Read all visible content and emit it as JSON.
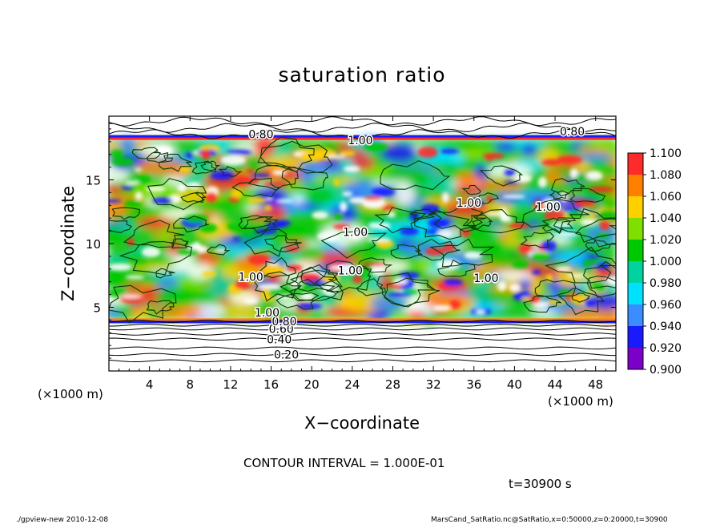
{
  "chart_data": {
    "type": "heatmap",
    "title": "saturation ratio",
    "xlabel": "X−coordinate",
    "ylabel": "Z−coordinate",
    "x_unit_left": "(×1000 m)",
    "x_unit_right": "(×1000 m)",
    "xlim": [
      0,
      50
    ],
    "ylim": [
      0,
      20
    ],
    "x_ticks": [
      4,
      8,
      12,
      16,
      20,
      24,
      28,
      32,
      36,
      40,
      44,
      48
    ],
    "y_ticks": [
      5,
      10,
      15
    ],
    "colorbar": {
      "levels": [
        "0.900",
        "0.920",
        "0.940",
        "0.960",
        "0.980",
        "1.000",
        "1.020",
        "1.040",
        "1.060",
        "1.080",
        "1.100"
      ],
      "colors": [
        "#7b00c8",
        "#1a1aff",
        "#3a8cff",
        "#00e0ff",
        "#00d2a0",
        "#00c800",
        "#7fe000",
        "#ffe000",
        "#ff9a00",
        "#ff3c2a",
        "#ff8a8a"
      ]
    },
    "contour_labels": [
      {
        "text": "0.20",
        "x": 17.5,
        "z": 1.3
      },
      {
        "text": "0.40",
        "x": 16.8,
        "z": 2.5
      },
      {
        "text": "0.60",
        "x": 17.0,
        "z": 3.3
      },
      {
        "text": "0.80",
        "x": 17.3,
        "z": 3.9
      },
      {
        "text": "1.00",
        "x": 15.6,
        "z": 4.6
      },
      {
        "text": "1.00",
        "x": 14.0,
        "z": 7.4
      },
      {
        "text": "1.00",
        "x": 23.8,
        "z": 7.9
      },
      {
        "text": "1.00",
        "x": 24.3,
        "z": 10.9
      },
      {
        "text": "1.00",
        "x": 37.2,
        "z": 7.3
      },
      {
        "text": "1.00",
        "x": 35.5,
        "z": 13.2
      },
      {
        "text": "1.00",
        "x": 43.3,
        "z": 12.9
      },
      {
        "text": "1.00",
        "x": 24.8,
        "z": 18.1
      },
      {
        "text": "0.80",
        "x": 15.0,
        "z": 18.6
      },
      {
        "text": "0.80",
        "x": 45.7,
        "z": 18.8
      }
    ],
    "contour_interval": "CONTOUR INTERVAL = 1.000E-01",
    "time": "t=30900 s"
  },
  "footer": {
    "left": "./gpview-new  2010-12-08",
    "right": "MarsCand_SatRatio.nc@SatRatio,x=0:50000,z=0:20000,t=30900"
  }
}
